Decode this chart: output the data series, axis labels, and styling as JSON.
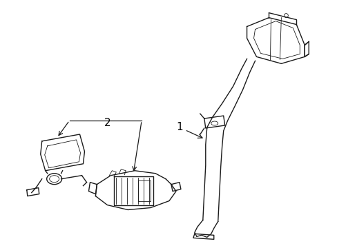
{
  "background_color": "#ffffff",
  "line_color": "#1a1a1a",
  "label_color": "#000000",
  "figsize": [
    4.89,
    3.6
  ],
  "dpi": 100,
  "parts": {
    "label1": "1",
    "label2": "2"
  },
  "lw_main": 1.0,
  "lw_thin": 0.6,
  "lw_thick": 1.4
}
